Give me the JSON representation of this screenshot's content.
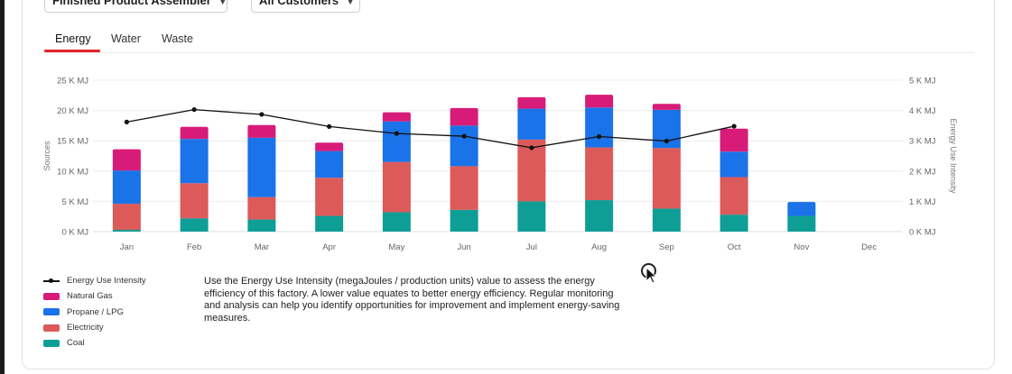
{
  "filters": {
    "factory_label": "Finished Product Assembler",
    "customer_label": "All Customers"
  },
  "tabs": [
    {
      "label": "Energy",
      "active": true
    },
    {
      "label": "Water",
      "active": false
    },
    {
      "label": "Waste",
      "active": false
    }
  ],
  "colors": {
    "natural_gas": "#d81b78",
    "propane": "#1a73e8",
    "electricity": "#dc5a5a",
    "coal": "#0f9e96",
    "intensity_line": "#111111",
    "tab_accent": "#e0262b"
  },
  "chart_data": {
    "type": "bar",
    "stacked": true,
    "categories": [
      "Jan",
      "Feb",
      "Mar",
      "Apr",
      "May",
      "Jun",
      "Jul",
      "Aug",
      "Sep",
      "Oct",
      "Nov",
      "Dec"
    ],
    "ylabel": "Sources",
    "y2label": "Energy Use Intensity",
    "ylim": [
      0,
      25000
    ],
    "y2lim": [
      0,
      5000
    ],
    "y_ticks": [
      "0 K MJ",
      "5 K MJ",
      "10 K MJ",
      "15 K MJ",
      "20 K MJ",
      "25 K MJ"
    ],
    "y2_ticks": [
      "0 K MJ",
      "1 K MJ",
      "2 K MJ",
      "3 K MJ",
      "4 K MJ",
      "5 K MJ"
    ],
    "grid": true,
    "series": [
      {
        "name": "Coal",
        "color": "#0f9e96",
        "values": [
          300,
          2200,
          2000,
          2600,
          3200,
          3600,
          5000,
          5200,
          3800,
          2800,
          2600,
          0
        ]
      },
      {
        "name": "Electricity",
        "color": "#dc5a5a",
        "values": [
          4300,
          5800,
          3700,
          6300,
          8300,
          7200,
          10200,
          8700,
          10000,
          6200,
          0,
          0
        ]
      },
      {
        "name": "Propane / LPG",
        "color": "#1a73e8",
        "values": [
          5500,
          7300,
          9800,
          4400,
          6700,
          6700,
          5100,
          6600,
          6300,
          4200,
          2300,
          0
        ]
      },
      {
        "name": "Natural Gas",
        "color": "#d81b78",
        "values": [
          3500,
          2000,
          2100,
          1400,
          1500,
          2900,
          1900,
          2100,
          1000,
          3800,
          0,
          0
        ]
      }
    ],
    "line_series": {
      "name": "Energy Use Intensity",
      "axis": "right",
      "values": [
        3620,
        4030,
        3870,
        3470,
        3240,
        3150,
        2770,
        3140,
        2990,
        3480,
        null,
        null
      ]
    },
    "legend": {
      "position": "bottom-left",
      "items": [
        "Energy Use Intensity",
        "Natural Gas",
        "Propane / LPG",
        "Electricity",
        "Coal"
      ]
    }
  },
  "description": "Use the Energy Use Intensity (megaJoules / production units) value to assess the energy efficiency of this factory. A lower value equates to better energy efficiency. Regular monitoring and analysis can help you identify opportunities for improvement and implement energy-saving measures."
}
